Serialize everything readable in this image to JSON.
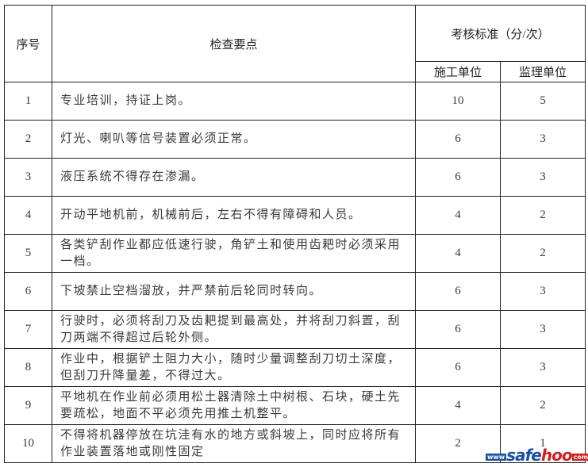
{
  "header": {
    "seq": "序号",
    "points": "检查要点",
    "standard": "考核标准（分/次）",
    "construction": "施工单位",
    "supervision": "监理单位"
  },
  "rows": [
    {
      "no": "1",
      "text": "专业培训，持证上岗。",
      "construction": "10",
      "supervision": "5"
    },
    {
      "no": "2",
      "text": "灯光、喇叭等信号装置必须正常。",
      "construction": "6",
      "supervision": "3"
    },
    {
      "no": "3",
      "text": "液压系统不得存在渗漏。",
      "construction": "6",
      "supervision": "3"
    },
    {
      "no": "4",
      "text": "开动平地机前，机械前后，左右不得有障碍和人员。",
      "construction": "4",
      "supervision": "2"
    },
    {
      "no": "5",
      "text": "各类铲刮作业都应低速行驶，角铲土和使用齿耙时必须采用一档。",
      "construction": "4",
      "supervision": "2"
    },
    {
      "no": "6",
      "text": "下坡禁止空档溜放，并严禁前后轮同时转向。",
      "construction": "6",
      "supervision": "3"
    },
    {
      "no": "7",
      "text": "行驶时，必须将刮刀及齿耙提到最高处，并将刮刀斜置，刮刀两端不得超过后轮外侧。",
      "construction": "6",
      "supervision": "3"
    },
    {
      "no": "8",
      "text": "作业中，根据铲土阻力大小，随时少量调整刮刀切土深度，但刮刀升降量差，不得过大。",
      "construction": "6",
      "supervision": "3"
    },
    {
      "no": "9",
      "text": "平地机在作业前必须用松土器清除土中树根、石块，硬土先要疏松，地面不平必须先用推土机整平。",
      "construction": "4",
      "supervision": "2"
    },
    {
      "no": "10",
      "text": "不得将机器停放在坑洼有水的地方或斜坡上，同时应将所有作业装置落地或刚性固定",
      "construction": "2",
      "supervision": "1"
    }
  ],
  "watermark": {
    "www": "www.",
    "safe": "safe",
    "hoo": "hoo",
    "com": ".com"
  }
}
